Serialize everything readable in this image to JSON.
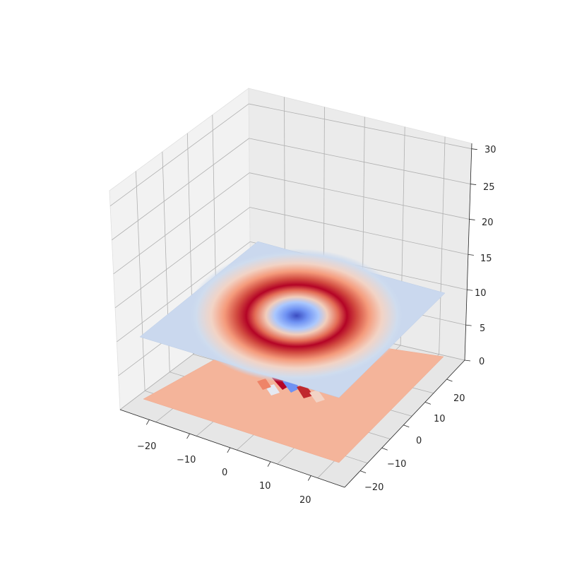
{
  "chart_data": {
    "type": "surface3d",
    "title": "",
    "xlabel": "",
    "ylabel": "",
    "zlabel": "",
    "xlim": [
      -27,
      27
    ],
    "ylim": [
      -27,
      27
    ],
    "zlim": [
      0,
      30
    ],
    "grid": true,
    "colormap": "coolwarm",
    "x_ticks": [
      "−20",
      "−10",
      "0",
      "10",
      "20"
    ],
    "y_ticks": [
      "−20",
      "−10",
      "0",
      "10",
      "20"
    ],
    "z_ticks": [
      "0",
      "5",
      "10",
      "15",
      "20",
      "25",
      "30"
    ],
    "surfaces": [
      {
        "description_level_z": 10,
        "shape": "radial ring (high) around central dip (low)",
        "ring_radius": 10
      },
      {
        "description_level_z": 0,
        "shape": "flat plane with small localized oscillation near origin"
      }
    ]
  }
}
